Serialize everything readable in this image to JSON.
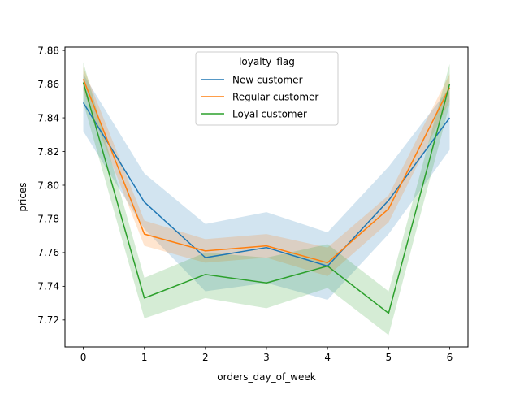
{
  "chart_data": {
    "type": "line",
    "title": "",
    "xlabel": "orders_day_of_week",
    "ylabel": "prices",
    "x": [
      0,
      1,
      2,
      3,
      4,
      5,
      6
    ],
    "xlim": [
      -0.3,
      6.3
    ],
    "ylim": [
      7.704,
      7.882
    ],
    "xticks": [
      0,
      1,
      2,
      3,
      4,
      5,
      6
    ],
    "yticks": [
      7.72,
      7.74,
      7.76,
      7.78,
      7.8,
      7.82,
      7.84,
      7.86,
      7.88
    ],
    "ytick_labels": [
      "7.72",
      "7.74",
      "7.76",
      "7.78",
      "7.80",
      "7.82",
      "7.84",
      "7.86",
      "7.88"
    ],
    "grid": false,
    "legend": {
      "title": "loyalty_flag",
      "placement": "upper-center"
    },
    "series": [
      {
        "name": "New customer",
        "color": "#1f77b4",
        "values": [
          7.849,
          7.79,
          7.757,
          7.763,
          7.752,
          7.791,
          7.84
        ],
        "ci_lower": [
          7.832,
          7.774,
          7.737,
          7.742,
          7.732,
          7.771,
          7.821
        ],
        "ci_upper": [
          7.866,
          7.807,
          7.777,
          7.784,
          7.772,
          7.811,
          7.858
        ]
      },
      {
        "name": "Regular customer",
        "color": "#ff7f0e",
        "values": [
          7.863,
          7.771,
          7.761,
          7.764,
          7.754,
          7.786,
          7.858
        ],
        "ci_lower": [
          7.856,
          7.764,
          7.754,
          7.757,
          7.746,
          7.778,
          7.85
        ],
        "ci_upper": [
          7.87,
          7.779,
          7.768,
          7.771,
          7.763,
          7.794,
          7.866
        ]
      },
      {
        "name": "Loyal customer",
        "color": "#2ca02c",
        "values": [
          7.861,
          7.733,
          7.747,
          7.742,
          7.752,
          7.724,
          7.86
        ],
        "ci_lower": [
          7.849,
          7.721,
          7.733,
          7.727,
          7.739,
          7.711,
          7.848
        ],
        "ci_upper": [
          7.873,
          7.745,
          7.76,
          7.757,
          7.765,
          7.737,
          7.872
        ]
      }
    ]
  }
}
